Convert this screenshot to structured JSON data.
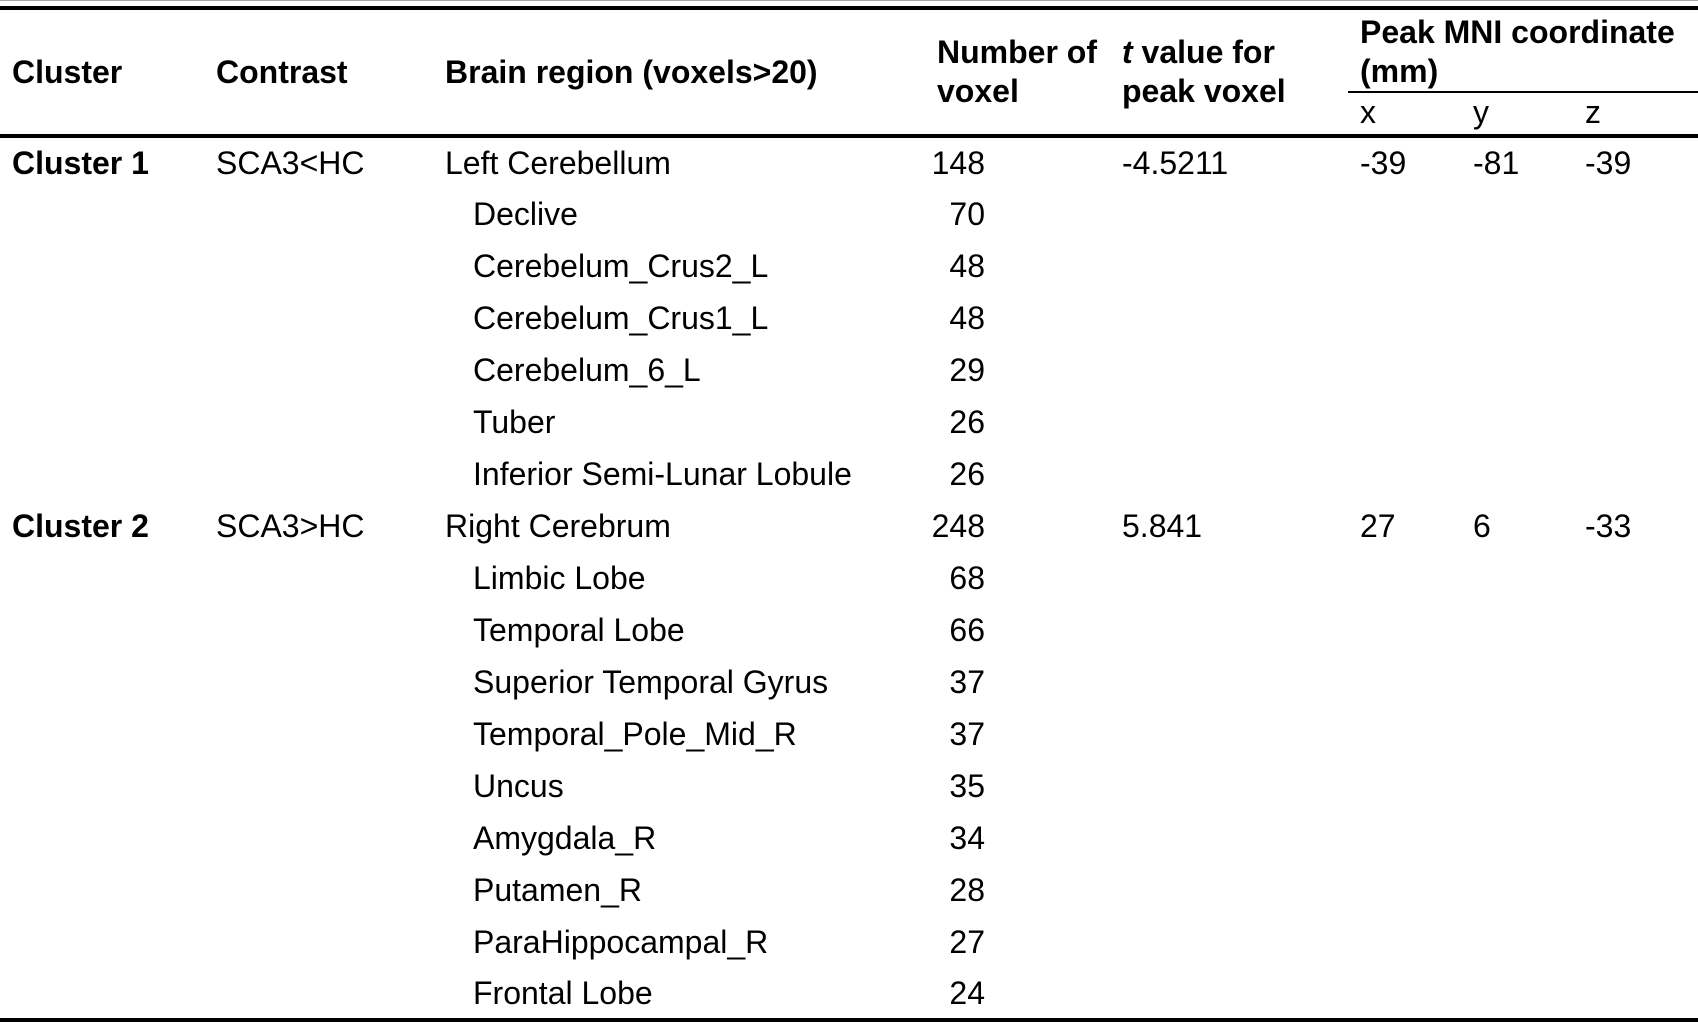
{
  "table": {
    "headers": {
      "cluster": "Cluster",
      "contrast": "Contrast",
      "brain_region": "Brain region (voxels>20)",
      "number_of_voxel": "Number of voxel",
      "t_value_italic": "t",
      "t_value_rest": " value for peak voxel",
      "peak_mni_group": "Peak MNI coordinate (mm)",
      "coord_x": "x",
      "coord_y": "y",
      "coord_z": "z"
    },
    "rows": [
      {
        "cluster": "Cluster 1",
        "contrast": "SCA3<HC",
        "region": "Left Cerebellum",
        "indent": false,
        "voxels": "148",
        "t": "-4.5211",
        "x": "-39",
        "y": "-81",
        "z": "-39"
      },
      {
        "cluster": "",
        "contrast": "",
        "region": "Declive",
        "indent": true,
        "voxels": "70",
        "t": "",
        "x": "",
        "y": "",
        "z": ""
      },
      {
        "cluster": "",
        "contrast": "",
        "region": "Cerebelum_Crus2_L",
        "indent": true,
        "voxels": "48",
        "t": "",
        "x": "",
        "y": "",
        "z": ""
      },
      {
        "cluster": "",
        "contrast": "",
        "region": "Cerebelum_Crus1_L",
        "indent": true,
        "voxels": "48",
        "t": "",
        "x": "",
        "y": "",
        "z": ""
      },
      {
        "cluster": "",
        "contrast": "",
        "region": "Cerebelum_6_L",
        "indent": true,
        "voxels": "29",
        "t": "",
        "x": "",
        "y": "",
        "z": ""
      },
      {
        "cluster": "",
        "contrast": "",
        "region": "Tuber",
        "indent": true,
        "voxels": "26",
        "t": "",
        "x": "",
        "y": "",
        "z": ""
      },
      {
        "cluster": "",
        "contrast": "",
        "region": "Inferior Semi-Lunar Lobule",
        "indent": true,
        "voxels": "26",
        "t": "",
        "x": "",
        "y": "",
        "z": ""
      },
      {
        "cluster": "Cluster 2",
        "contrast": "SCA3>HC",
        "region": "Right Cerebrum",
        "indent": false,
        "voxels": "248",
        "t": "5.841",
        "x": "27",
        "y": "6",
        "z": "-33"
      },
      {
        "cluster": "",
        "contrast": "",
        "region": "Limbic Lobe",
        "indent": true,
        "voxels": "68",
        "t": "",
        "x": "",
        "y": "",
        "z": ""
      },
      {
        "cluster": "",
        "contrast": "",
        "region": "Temporal Lobe",
        "indent": true,
        "voxels": "66",
        "t": "",
        "x": "",
        "y": "",
        "z": ""
      },
      {
        "cluster": "",
        "contrast": "",
        "region": "Superior Temporal Gyrus",
        "indent": true,
        "voxels": "37",
        "t": "",
        "x": "",
        "y": "",
        "z": ""
      },
      {
        "cluster": "",
        "contrast": "",
        "region": "Temporal_Pole_Mid_R",
        "indent": true,
        "voxels": "37",
        "t": "",
        "x": "",
        "y": "",
        "z": ""
      },
      {
        "cluster": "",
        "contrast": "",
        "region": "Uncus",
        "indent": true,
        "voxels": "35",
        "t": "",
        "x": "",
        "y": "",
        "z": ""
      },
      {
        "cluster": "",
        "contrast": "",
        "region": "Amygdala_R",
        "indent": true,
        "voxels": "34",
        "t": "",
        "x": "",
        "y": "",
        "z": ""
      },
      {
        "cluster": "",
        "contrast": "",
        "region": "Putamen_R",
        "indent": true,
        "voxels": "28",
        "t": "",
        "x": "",
        "y": "",
        "z": ""
      },
      {
        "cluster": "",
        "contrast": "",
        "region": "ParaHippocampal_R",
        "indent": true,
        "voxels": "27",
        "t": "",
        "x": "",
        "y": "",
        "z": ""
      },
      {
        "cluster": "",
        "contrast": "",
        "region": "Frontal Lobe",
        "indent": true,
        "voxels": "24",
        "t": "",
        "x": "",
        "y": "",
        "z": ""
      }
    ]
  },
  "colors": {
    "text": "#000000",
    "rule": "#000000",
    "top_hairline": "#a8a8a8"
  }
}
